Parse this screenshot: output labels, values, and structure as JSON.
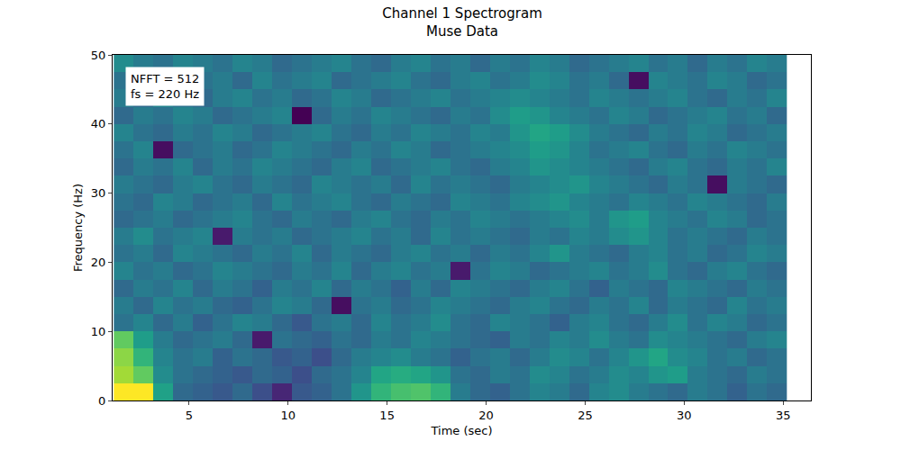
{
  "chart_data": {
    "type": "heatmap",
    "title": "Channel 1 Spectrogram",
    "subtitle": "Muse Data",
    "x_label": "Time (sec)",
    "y_label": "Frequency (Hz)",
    "annotations": [
      "NFFT = 512",
      "fs = 220 Hz"
    ],
    "color": "Viridis",
    "grid": false,
    "xlim": [
      1.14,
      36.4
    ],
    "ylim": [
      0,
      50
    ],
    "xticks": [
      5,
      10,
      15,
      20,
      25,
      30,
      35
    ],
    "yticks": [
      0,
      10,
      20,
      30,
      40,
      50
    ],
    "x": [
      1.2,
      2.2,
      3.2,
      4.2,
      5.2,
      6.2,
      7.2,
      8.2,
      9.2,
      10.2,
      11.2,
      12.2,
      13.2,
      14.2,
      15.2,
      16.2,
      17.2,
      18.2,
      19.2,
      20.2,
      21.2,
      22.2,
      23.2,
      24.2,
      25.2,
      26.2,
      27.2,
      28.2,
      29.2,
      30.2,
      31.2,
      32.2,
      33.2,
      34.2,
      35.2
    ],
    "y": [
      0,
      2.5,
      5,
      7.5,
      10,
      12.5,
      15,
      17.5,
      20,
      22.5,
      25,
      27.5,
      30,
      32.5,
      35,
      37.5,
      40,
      42.5,
      45,
      47.5,
      50
    ],
    "z": [
      [
        80,
        80,
        55,
        42,
        40,
        38,
        42,
        36,
        28,
        38,
        40,
        44,
        52,
        60,
        63,
        64,
        60,
        46,
        42,
        40,
        44,
        48,
        46,
        42,
        48,
        50,
        46,
        44,
        42,
        46,
        44,
        40,
        44,
        42
      ],
      [
        72,
        66,
        50,
        44,
        42,
        40,
        38,
        42,
        40,
        36,
        42,
        44,
        48,
        56,
        58,
        56,
        52,
        44,
        42,
        46,
        44,
        50,
        48,
        44,
        46,
        50,
        48,
        52,
        54,
        46,
        44,
        42,
        46,
        44
      ],
      [
        70,
        60,
        48,
        44,
        46,
        40,
        44,
        42,
        38,
        40,
        36,
        42,
        46,
        48,
        50,
        46,
        44,
        40,
        44,
        46,
        42,
        46,
        50,
        48,
        44,
        48,
        52,
        56,
        50,
        48,
        44,
        46,
        42,
        44
      ],
      [
        66,
        54,
        46,
        42,
        44,
        46,
        42,
        26,
        44,
        42,
        40,
        44,
        42,
        46,
        44,
        48,
        46,
        44,
        42,
        40,
        46,
        44,
        48,
        46,
        50,
        46,
        44,
        50,
        48,
        46,
        44,
        42,
        46,
        48
      ],
      [
        44,
        48,
        42,
        46,
        40,
        44,
        48,
        46,
        42,
        38,
        44,
        46,
        42,
        48,
        44,
        46,
        50,
        44,
        42,
        48,
        46,
        44,
        40,
        46,
        48,
        44,
        42,
        46,
        50,
        44,
        48,
        46,
        42,
        44
      ],
      [
        46,
        42,
        48,
        44,
        46,
        42,
        40,
        44,
        48,
        46,
        42,
        24,
        44,
        46,
        42,
        44,
        48,
        46,
        44,
        42,
        46,
        48,
        44,
        42,
        46,
        44,
        48,
        42,
        46,
        44,
        42,
        48,
        44,
        46
      ],
      [
        42,
        46,
        44,
        48,
        42,
        46,
        44,
        40,
        46,
        44,
        48,
        42,
        46,
        44,
        40,
        46,
        42,
        48,
        46,
        44,
        42,
        46,
        48,
        44,
        40,
        46,
        44,
        42,
        48,
        46,
        44,
        42,
        46,
        44
      ],
      [
        48,
        44,
        46,
        42,
        44,
        48,
        46,
        44,
        42,
        46,
        44,
        48,
        42,
        46,
        48,
        44,
        46,
        26,
        44,
        48,
        46,
        42,
        44,
        46,
        48,
        44,
        46,
        50,
        44,
        42,
        46,
        48,
        44,
        42
      ],
      [
        44,
        46,
        42,
        48,
        46,
        44,
        42,
        46,
        44,
        48,
        42,
        46,
        44,
        42,
        46,
        48,
        44,
        46,
        42,
        46,
        44,
        48,
        52,
        46,
        44,
        42,
        46,
        48,
        44,
        46,
        42,
        44,
        48,
        46
      ],
      [
        46,
        50,
        44,
        46,
        48,
        26,
        46,
        44,
        46,
        42,
        44,
        46,
        48,
        44,
        46,
        42,
        48,
        44,
        46,
        44,
        42,
        46,
        44,
        48,
        46,
        50,
        52,
        48,
        44,
        46,
        44,
        42,
        46,
        44
      ],
      [
        42,
        44,
        46,
        42,
        44,
        46,
        48,
        44,
        42,
        46,
        44,
        42,
        46,
        48,
        44,
        42,
        46,
        44,
        48,
        46,
        44,
        46,
        48,
        50,
        46,
        52,
        54,
        48,
        46,
        44,
        48,
        46,
        42,
        44
      ],
      [
        44,
        42,
        48,
        46,
        42,
        44,
        46,
        42,
        48,
        44,
        46,
        48,
        44,
        42,
        46,
        44,
        42,
        48,
        46,
        44,
        48,
        50,
        52,
        48,
        46,
        44,
        48,
        46,
        44,
        48,
        46,
        44,
        42,
        46
      ],
      [
        46,
        44,
        42,
        46,
        48,
        44,
        42,
        46,
        44,
        42,
        48,
        46,
        44,
        46,
        42,
        48,
        44,
        46,
        44,
        42,
        46,
        48,
        50,
        52,
        48,
        46,
        44,
        42,
        46,
        44,
        24,
        46,
        44,
        42
      ],
      [
        42,
        46,
        44,
        48,
        42,
        46,
        44,
        48,
        46,
        44,
        42,
        46,
        48,
        42,
        44,
        46,
        48,
        44,
        42,
        46,
        48,
        52,
        50,
        48,
        46,
        44,
        42,
        46,
        48,
        44,
        42,
        46,
        44,
        48
      ],
      [
        44,
        48,
        24,
        42,
        44,
        46,
        42,
        44,
        48,
        46,
        44,
        42,
        46,
        44,
        48,
        46,
        42,
        44,
        46,
        48,
        50,
        54,
        52,
        48,
        44,
        46,
        48,
        44,
        42,
        46,
        44,
        48,
        46,
        44
      ],
      [
        48,
        44,
        42,
        46,
        44,
        48,
        46,
        42,
        44,
        46,
        48,
        44,
        42,
        46,
        44,
        48,
        46,
        44,
        48,
        46,
        52,
        56,
        54,
        50,
        46,
        44,
        42,
        46,
        44,
        48,
        46,
        42,
        44,
        46
      ],
      [
        42,
        46,
        44,
        48,
        46,
        42,
        44,
        46,
        48,
        22,
        42,
        46,
        44,
        48,
        46,
        44,
        42,
        46,
        44,
        50,
        54,
        52,
        48,
        46,
        44,
        48,
        46,
        42,
        44,
        46,
        48,
        44,
        46,
        42
      ],
      [
        46,
        42,
        48,
        44,
        42,
        46,
        48,
        44,
        46,
        42,
        44,
        48,
        46,
        42,
        44,
        46,
        48,
        44,
        46,
        48,
        50,
        48,
        46,
        44,
        48,
        46,
        44,
        46,
        48,
        44,
        42,
        46,
        44,
        48
      ],
      [
        44,
        48,
        46,
        42,
        44,
        46,
        42,
        48,
        44,
        46,
        48,
        42,
        44,
        46,
        48,
        44,
        42,
        46,
        48,
        44,
        46,
        50,
        48,
        44,
        46,
        42,
        24,
        48,
        46,
        44,
        48,
        46,
        42,
        44
      ],
      [
        50,
        46,
        44,
        48,
        46,
        44,
        48,
        46,
        42,
        44,
        46,
        48,
        44,
        42,
        46,
        48,
        44,
        46,
        42,
        46,
        44,
        48,
        46,
        42,
        44,
        46,
        48,
        44,
        46,
        42,
        46,
        44,
        48,
        46
      ]
    ]
  }
}
